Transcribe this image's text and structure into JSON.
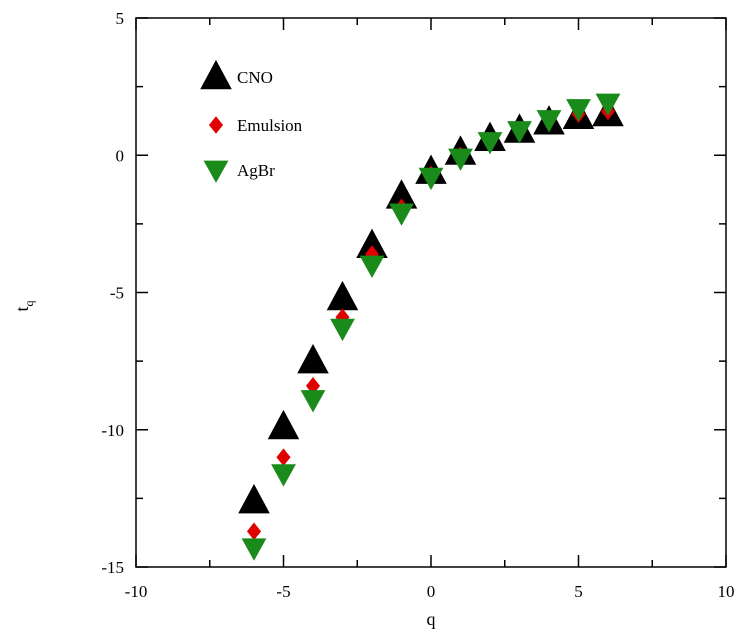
{
  "chart_data": {
    "type": "scatter",
    "title": "",
    "xlabel": "q",
    "ylabel_main": "t",
    "ylabel_sub": "q",
    "xlim": [
      -10,
      10
    ],
    "ylim": [
      -15,
      5
    ],
    "xticks": [
      -10,
      -5,
      0,
      5,
      10
    ],
    "yticks": [
      -15,
      -10,
      -5,
      0,
      5
    ],
    "grid": false,
    "legend_position": "top-left",
    "x": [
      -6,
      -5,
      -4,
      -3,
      -2,
      -1,
      0,
      1,
      2,
      3,
      4,
      5,
      6
    ],
    "series": [
      {
        "name": "CNO",
        "marker": "triangle-up",
        "color": "#000000",
        "values": [
          -12.6,
          -9.9,
          -7.5,
          -5.2,
          -3.3,
          -1.5,
          -0.6,
          0.1,
          0.6,
          0.9,
          1.2,
          1.4,
          1.5
        ]
      },
      {
        "name": "Emulsion",
        "marker": "diamond",
        "color": "#e00000",
        "values": [
          -13.7,
          -11.0,
          -8.4,
          -5.9,
          -3.6,
          -1.9,
          -0.7,
          0.0,
          0.5,
          0.9,
          1.3,
          1.5,
          1.6
        ]
      },
      {
        "name": "AgBr",
        "marker": "triangle-down",
        "color": "#1a8a1a",
        "values": [
          -14.3,
          -11.6,
          -8.9,
          -6.3,
          -4.0,
          -2.1,
          -0.8,
          -0.1,
          0.5,
          0.9,
          1.3,
          1.7,
          1.9
        ]
      }
    ]
  }
}
